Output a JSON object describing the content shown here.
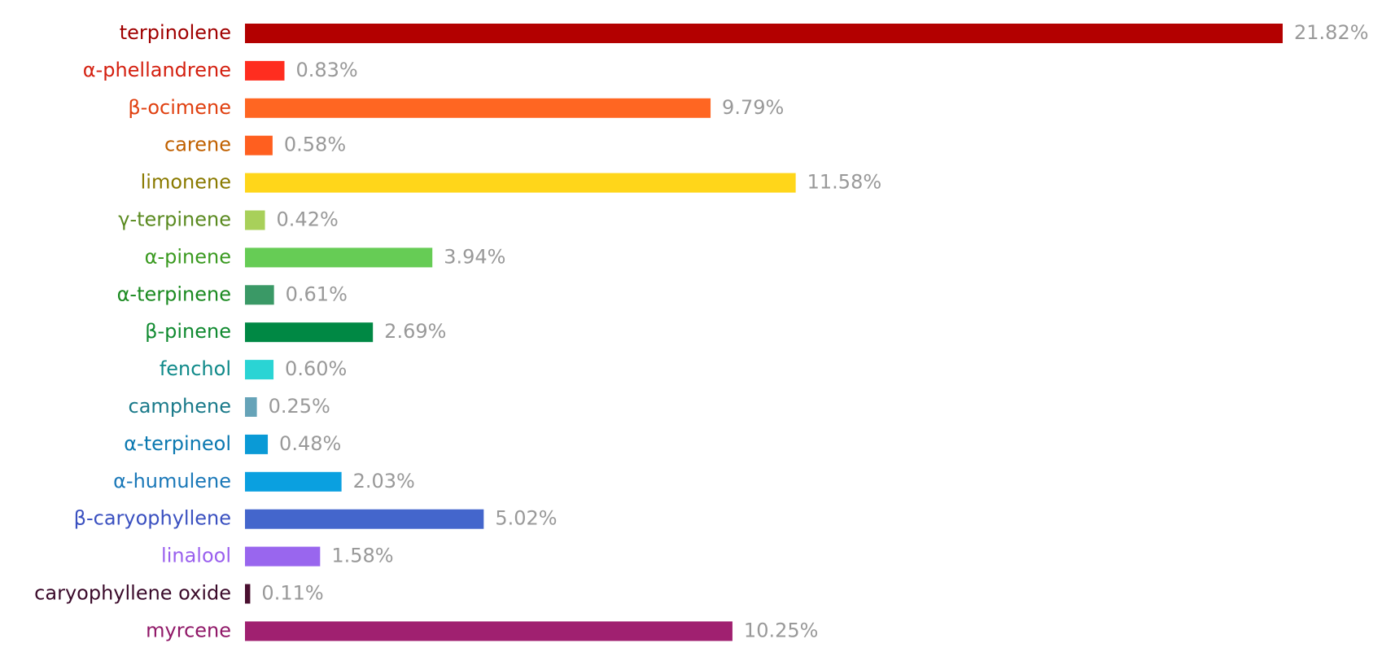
{
  "chart_data": {
    "type": "bar",
    "orientation": "horizontal",
    "categories": [
      "terpinolene",
      "α-phellandrene",
      "β-ocimene",
      "carene",
      "limonene",
      "γ-terpinene",
      "α-pinene",
      "α-terpinene",
      "β-pinene",
      "fenchol",
      "camphene",
      "α-terpineol",
      "α-humulene",
      "β-caryophyllene",
      "linalool",
      "caryophyllene oxide",
      "myrcene"
    ],
    "values": [
      21.82,
      0.83,
      9.79,
      0.58,
      11.58,
      0.42,
      3.94,
      0.61,
      2.69,
      0.6,
      0.25,
      0.48,
      2.03,
      5.02,
      1.58,
      0.11,
      10.25
    ],
    "value_labels": [
      "21.82%",
      "0.83%",
      "9.79%",
      "0.58%",
      "11.58%",
      "0.42%",
      "3.94%",
      "0.61%",
      "2.69%",
      "0.60%",
      "0.25%",
      "0.48%",
      "2.03%",
      "5.02%",
      "1.58%",
      "0.11%",
      "10.25%"
    ],
    "colors": [
      "#b30000",
      "#ff2d1f",
      "#ff6622",
      "#ff5f1f",
      "#ffd61a",
      "#a8d05a",
      "#66cc55",
      "#3a9966",
      "#008844",
      "#2ad4d4",
      "#66a3b8",
      "#0a9ad6",
      "#0aa0e0",
      "#4466cc",
      "#9966ee",
      "#4a1030",
      "#a02070"
    ],
    "label_colors": [
      "#a00000",
      "#d42010",
      "#e04010",
      "#c06000",
      "#8a7a00",
      "#5a8a20",
      "#3a9a20",
      "#1a8a20",
      "#108a30",
      "#108a8a",
      "#1a7a8a",
      "#0a78b0",
      "#1a78b8",
      "#3a50c0",
      "#9a60ee",
      "#3a0a2a",
      "#901868"
    ]
  }
}
